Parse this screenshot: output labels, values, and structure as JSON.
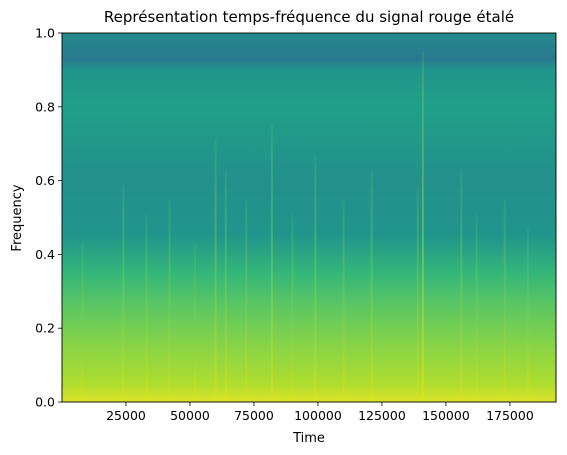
{
  "chart_data": {
    "type": "heatmap",
    "title": "Représentation temps-fréquence du signal rouge étalé",
    "xlabel": "Time",
    "ylabel": "Frequency",
    "xlim": [
      0,
      193000
    ],
    "ylim": [
      0,
      1.0
    ],
    "x_ticks": [
      25000,
      50000,
      75000,
      100000,
      125000,
      150000,
      175000
    ],
    "x_tick_labels": [
      "25000",
      "50000",
      "75000",
      "100000",
      "125000",
      "150000",
      "175000"
    ],
    "y_ticks": [
      0.0,
      0.2,
      0.4,
      0.6,
      0.8,
      1.0
    ],
    "y_tick_labels": [
      "0.0",
      "0.2",
      "0.4",
      "0.6",
      "0.8",
      "1.0"
    ],
    "colormap": "viridis",
    "grid": false,
    "frequency_profile": [
      {
        "frequency": 0.0,
        "level": 0.95
      },
      {
        "frequency": 0.05,
        "level": 0.88
      },
      {
        "frequency": 0.15,
        "level": 0.82
      },
      {
        "frequency": 0.25,
        "level": 0.75
      },
      {
        "frequency": 0.35,
        "level": 0.66
      },
      {
        "frequency": 0.45,
        "level": 0.52
      },
      {
        "frequency": 0.6,
        "level": 0.5
      },
      {
        "frequency": 0.8,
        "level": 0.56
      },
      {
        "frequency": 0.9,
        "level": 0.52
      },
      {
        "frequency": 0.93,
        "level": 0.4
      },
      {
        "frequency": 1.0,
        "level": 0.48
      }
    ],
    "transients": [
      {
        "time": 8000,
        "strength": 0.35
      },
      {
        "time": 24000,
        "strength": 0.55
      },
      {
        "time": 33000,
        "strength": 0.45
      },
      {
        "time": 42000,
        "strength": 0.5
      },
      {
        "time": 52000,
        "strength": 0.35
      },
      {
        "time": 60000,
        "strength": 0.7
      },
      {
        "time": 64000,
        "strength": 0.6
      },
      {
        "time": 72000,
        "strength": 0.5
      },
      {
        "time": 82000,
        "strength": 0.75
      },
      {
        "time": 90000,
        "strength": 0.45
      },
      {
        "time": 99000,
        "strength": 0.65
      },
      {
        "time": 110000,
        "strength": 0.5
      },
      {
        "time": 121000,
        "strength": 0.6
      },
      {
        "time": 139000,
        "strength": 0.55
      },
      {
        "time": 141000,
        "strength": 1.0
      },
      {
        "time": 156000,
        "strength": 0.6
      },
      {
        "time": 162000,
        "strength": 0.45
      },
      {
        "time": 173000,
        "strength": 0.5
      },
      {
        "time": 182000,
        "strength": 0.4
      }
    ]
  }
}
